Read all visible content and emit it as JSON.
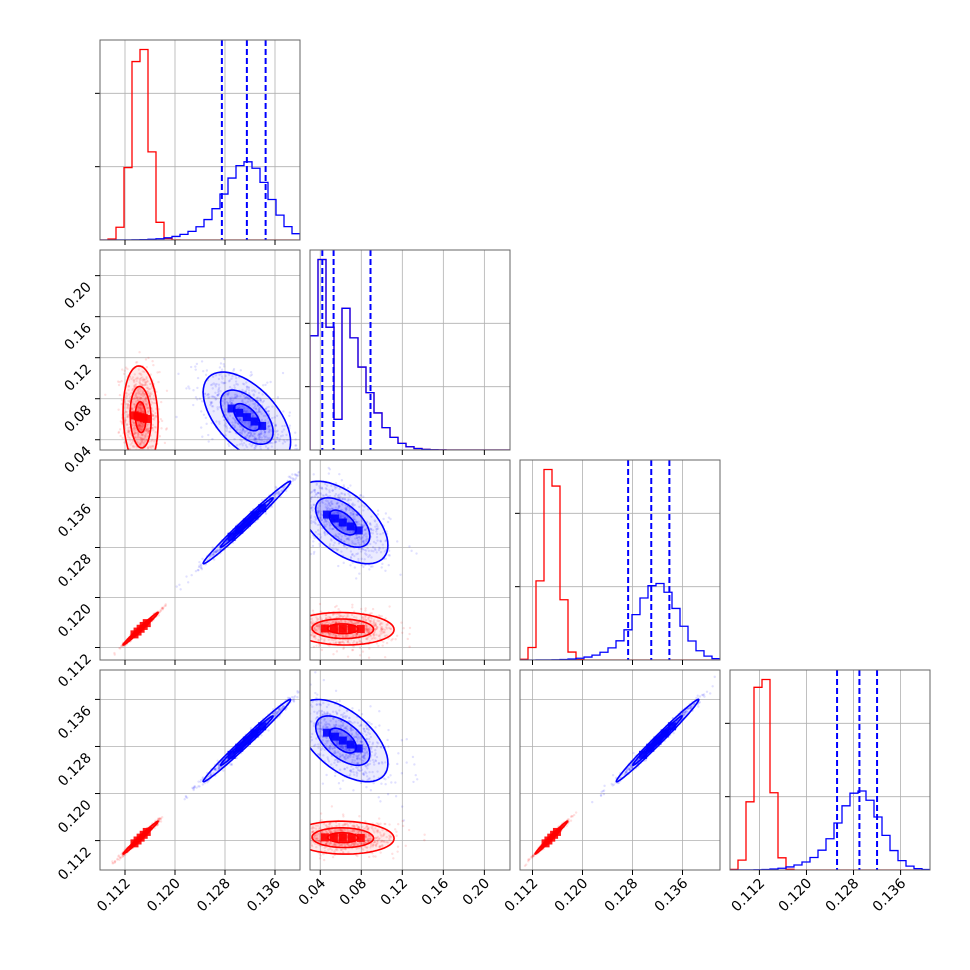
{
  "chart_data": {
    "type": "corner",
    "title": "",
    "grid": true,
    "colors": {
      "red": "#ff0000",
      "blue": "#0000ff",
      "grid": "#b0b0b0",
      "axes": "#666666"
    },
    "params": [
      {
        "range": [
          0.108,
          0.14
        ],
        "ticks": [
          0.112,
          0.12,
          0.128,
          0.136
        ],
        "tick_labels": [
          "0.112",
          "0.120",
          "0.128",
          "0.136"
        ],
        "label": ""
      },
      {
        "range": [
          0.03,
          0.225
        ],
        "ticks": [
          0.04,
          0.08,
          0.12,
          0.16,
          0.2
        ],
        "tick_labels": [
          "0.04",
          "0.08",
          "0.12",
          "0.16",
          "0.20"
        ],
        "label": ""
      },
      {
        "range": [
          0.11,
          0.142
        ],
        "ticks": [
          0.112,
          0.12,
          0.128,
          0.136
        ],
        "tick_labels": [
          "0.112",
          "0.120",
          "0.128",
          "0.136"
        ],
        "label": ""
      },
      {
        "range": [
          0.107,
          0.141
        ],
        "ticks": [
          0.112,
          0.12,
          0.128,
          0.136
        ],
        "tick_labels": [
          "0.112",
          "0.120",
          "0.128",
          "0.136"
        ],
        "label": ""
      }
    ],
    "series": [
      {
        "color": "red",
        "means": [
          0.1145,
          0.062,
          0.115,
          0.1125
        ],
        "sds": [
          0.0014,
          0.025,
          0.0013,
          0.0014
        ],
        "corr": {
          "0-1": -0.1,
          "0-2": 0.99,
          "0-3": 0.99,
          "1-2": -0.05,
          "1-3": -0.05,
          "2-3": 0.99
        },
        "quantiles": null
      },
      {
        "color": "blue",
        "means": [
          0.1315,
          0.062,
          0.132,
          0.129
        ],
        "sds": [
          0.0035,
          0.022,
          0.0033,
          0.0035
        ],
        "corr": {
          "0-1": -0.55,
          "0-2": 0.99,
          "0-3": 0.99,
          "1-2": -0.55,
          "1-3": -0.55,
          "2-3": 0.99
        },
        "quantiles": [
          [
            0.1275,
            0.1315,
            0.1345
          ],
          [
            0.042,
            0.053,
            0.089
          ],
          [
            0.1273,
            0.131,
            0.1339
          ],
          [
            0.1252,
            0.129,
            0.132
          ]
        ]
      }
    ]
  }
}
